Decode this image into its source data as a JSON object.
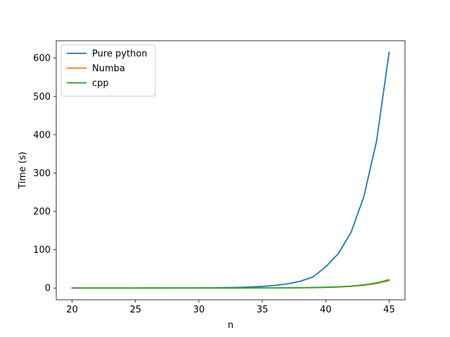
{
  "chart_data": {
    "type": "line",
    "title": "",
    "xlabel": "n",
    "ylabel": "Time (s)",
    "xlim": [
      18.75,
      46.25
    ],
    "ylim": [
      -30.7,
      645.2
    ],
    "x_ticks": [
      20,
      25,
      30,
      35,
      40,
      45
    ],
    "y_ticks": [
      0,
      100,
      200,
      300,
      400,
      500,
      600
    ],
    "grid": false,
    "legend_position": "top-left",
    "x": [
      20,
      21,
      22,
      23,
      24,
      25,
      26,
      27,
      28,
      29,
      30,
      31,
      32,
      33,
      34,
      35,
      36,
      37,
      38,
      39,
      40,
      41,
      42,
      43,
      44,
      45
    ],
    "series": [
      {
        "name": "Pure python",
        "color": "#1f77b4",
        "values": [
          0.003,
          0.005,
          0.008,
          0.013,
          0.021,
          0.034,
          0.055,
          0.089,
          0.144,
          0.233,
          0.377,
          0.61,
          0.99,
          1.6,
          2.6,
          4.2,
          6.8,
          11.0,
          17.8,
          28.8,
          55.5,
          90,
          145.5,
          238,
          382,
          615
        ]
      },
      {
        "name": "Numba",
        "color": "#ff7f0e",
        "values": [
          0.0001,
          0.0002,
          0.0003,
          0.0005,
          0.0008,
          0.0013,
          0.002,
          0.0033,
          0.005,
          0.009,
          0.014,
          0.023,
          0.037,
          0.06,
          0.1,
          0.15,
          0.25,
          0.4,
          0.65,
          1.05,
          1.7,
          2.75,
          4.45,
          7.2,
          11.7,
          19.0
        ]
      },
      {
        "name": "cpp",
        "color": "#2ca02c",
        "values": [
          0.0001,
          0.0002,
          0.0003,
          0.0005,
          0.0008,
          0.0013,
          0.002,
          0.0034,
          0.0055,
          0.009,
          0.015,
          0.025,
          0.04,
          0.065,
          0.1,
          0.17,
          0.27,
          0.45,
          0.73,
          1.2,
          1.9,
          3.1,
          5.0,
          8.1,
          13.2,
          21.6
        ]
      }
    ]
  }
}
